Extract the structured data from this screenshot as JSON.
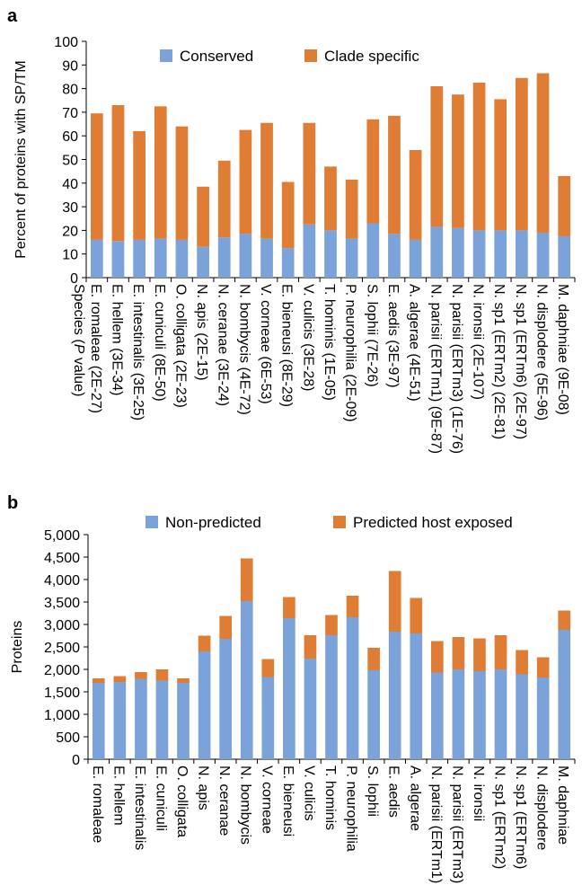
{
  "colors": {
    "conserved": "#7ba3d9",
    "clade": "#e07d35",
    "axis": "#000000"
  },
  "chart_data": [
    {
      "panel": "a",
      "type": "bar",
      "stacked": true,
      "ylabel": "Percent of proteins with SP/TM",
      "xlabel": "Species (P value)",
      "ylim": [
        0,
        100
      ],
      "yticks": [
        0,
        10,
        20,
        30,
        40,
        50,
        60,
        70,
        80,
        90,
        100
      ],
      "ytick_labels": [
        "0",
        "10",
        "20",
        "30",
        "40",
        "50",
        "60",
        "70",
        "80",
        "90",
        "100"
      ],
      "legend_position": "top",
      "categories": [
        "E. romaleae (2E-27)",
        "E. hellem (3E-34)",
        "E. intestinalis (3E-25)",
        "E. cuniculi (8E-50)",
        "O. colligata (2E-23)",
        "N. apis (2E-15)",
        "N. ceranae (3E-24)",
        "N. bombycis (4E-72)",
        "V. corneae (6E-53)",
        "E. bieneusi (8E-29)",
        "V. culicis (3E-28)",
        "T. hominis (1E-05)",
        "P. neurophilia (2E-09)",
        "S. lophii (7E-26)",
        "E. aedis (3E-97)",
        "A. algerae (4E-51)",
        "N. parisii (ERTm1) (9E-87)",
        "N. parisii (ERTm3) (1E-76)",
        "N. ironsii (2E-107)",
        "N. sp1 (ERTm2) (2E-81)",
        "N. sp1 (ERTm6) (2E-97)",
        "N. displodere (5E-96)",
        "M. daphniae (9E-08)"
      ],
      "series": [
        {
          "name": "Conserved",
          "values": [
            16,
            15.5,
            16,
            16.5,
            16,
            13,
            17,
            18.5,
            16.5,
            12.5,
            22.5,
            20,
            16.5,
            23,
            18.5,
            16,
            21.5,
            21,
            20,
            20,
            20,
            19,
            17.5
          ]
        },
        {
          "name": "Clade specific",
          "values": [
            53.5,
            57.5,
            46,
            56,
            48,
            25.5,
            32.5,
            44,
            49,
            28,
            43,
            27,
            25,
            44,
            50,
            38,
            59.5,
            56.5,
            62.5,
            55.5,
            64.5,
            67.5,
            25.5
          ]
        }
      ]
    },
    {
      "panel": "b",
      "type": "bar",
      "stacked": true,
      "ylabel": "Proteins",
      "ylim": [
        0,
        5000
      ],
      "yticks": [
        0,
        500,
        1000,
        1500,
        2000,
        2500,
        3000,
        3500,
        4000,
        4500,
        5000
      ],
      "ytick_labels": [
        "0",
        "500",
        "1,000",
        "1,500",
        "2,000",
        "2,500",
        "3,000",
        "3,500",
        "4,000",
        "4,500",
        "5,000"
      ],
      "legend_position": "top",
      "categories": [
        "E. romaleae",
        "E. hellem",
        "E. intestinalis",
        "E. cuniculi",
        "O. colligata",
        "N. apis",
        "N. ceranae",
        "N. bombycis",
        "V. corneae",
        "E. bieneusi",
        "V. culicis",
        "T. hominis",
        "P. neurophilia",
        "S. lophii",
        "E. aedis",
        "A. algerae",
        "N. parisii (ERTm1)",
        "N. parisii (ERTm3)",
        "N. ironsii",
        "N. sp1 (ERTm2)",
        "N. sp1 (ERTm6)",
        "N. displodere",
        "M. daphniae"
      ],
      "series": [
        {
          "name": "Non-predicted",
          "values": [
            1700,
            1720,
            1790,
            1750,
            1700,
            2400,
            2680,
            3520,
            1830,
            3140,
            2240,
            2760,
            3160,
            1980,
            2840,
            2800,
            1930,
            2000,
            1960,
            2000,
            1890,
            1820,
            2880
          ]
        },
        {
          "name": "Predicted host exposed",
          "values": [
            100,
            130,
            150,
            250,
            100,
            350,
            510,
            950,
            400,
            470,
            520,
            450,
            480,
            500,
            1350,
            790,
            700,
            720,
            730,
            760,
            540,
            450,
            430
          ]
        }
      ]
    }
  ]
}
